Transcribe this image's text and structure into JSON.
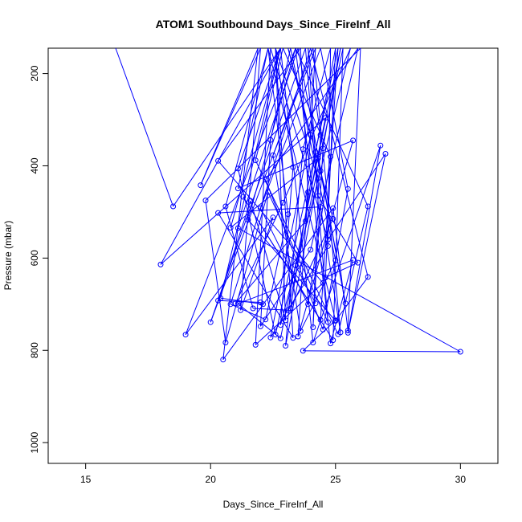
{
  "chart_data": {
    "type": "line",
    "title": "ATOM1 Southbound Days_Since_FireInf_All",
    "xlabel": "Days_Since_FireInf_All",
    "ylabel": "Pressure (mbar)",
    "xlim": [
      13.5,
      31.5
    ],
    "ylim": [
      1045,
      145
    ],
    "y_inverted": true,
    "x_ticks": [
      15,
      20,
      25,
      30
    ],
    "x_tick_labels": [
      "15",
      "20",
      "25",
      "30"
    ],
    "y_ticks": [
      200,
      400,
      600,
      800,
      1000
    ],
    "y_tick_labels": [
      "200",
      "400",
      "600",
      "800",
      "1000"
    ],
    "grid": false,
    "series": [
      {
        "color": "#0000ff",
        "points": [
          [
            16.2,
            145
          ],
          [
            18.5,
            488
          ],
          [
            22.8,
            145
          ],
          [
            18.0,
            614
          ],
          [
            24.6,
            296
          ],
          [
            22.8,
            774
          ],
          [
            21.1,
            699
          ],
          [
            25.7,
            604
          ],
          [
            24.8,
            785
          ],
          [
            23.4,
            145
          ],
          [
            19.0,
            766
          ],
          [
            22.5,
            512
          ],
          [
            21.2,
            713
          ],
          [
            22.0,
            145
          ],
          [
            19.6,
            442
          ],
          [
            21.9,
            145
          ],
          [
            20.5,
            820
          ],
          [
            24.9,
            492
          ],
          [
            25.5,
            757
          ],
          [
            26.0,
            145
          ],
          [
            19.8,
            475
          ],
          [
            20.6,
            783
          ],
          [
            22.3,
            457
          ],
          [
            24.7,
            739
          ],
          [
            23.8,
            145
          ],
          [
            20.0,
            739
          ],
          [
            24.1,
            145
          ],
          [
            25.2,
            761
          ],
          [
            24.4,
            489
          ],
          [
            20.3,
            502
          ],
          [
            23.3,
            773
          ],
          [
            22.6,
            145
          ],
          [
            23.0,
            735
          ],
          [
            21.6,
            476
          ],
          [
            20.3,
            692
          ],
          [
            22.0,
            696
          ],
          [
            22.1,
            700
          ],
          [
            20.4,
            687
          ],
          [
            22.8,
            145
          ],
          [
            21.1,
            406
          ],
          [
            22.6,
            766
          ],
          [
            25.1,
            145
          ],
          [
            24.4,
            734
          ],
          [
            21.3,
            467
          ],
          [
            24.9,
            778
          ],
          [
            25.3,
            145
          ],
          [
            23.1,
            713
          ],
          [
            21.7,
            709
          ],
          [
            20.6,
            488
          ],
          [
            22.3,
            145
          ],
          [
            25.0,
            735
          ],
          [
            23.7,
            801
          ],
          [
            30.0,
            803
          ],
          [
            21.1,
            535
          ],
          [
            23.5,
            145
          ],
          [
            25.4,
            698
          ],
          [
            24.3,
            384
          ],
          [
            20.8,
            534
          ],
          [
            22.8,
            145
          ],
          [
            24.1,
            783
          ],
          [
            26.8,
            356
          ],
          [
            25.5,
            762
          ],
          [
            27.0,
            374
          ],
          [
            24.7,
            560
          ],
          [
            22.4,
            145
          ],
          [
            21.8,
            788
          ],
          [
            24.5,
            654
          ],
          [
            20.3,
            389
          ],
          [
            23.6,
            145
          ],
          [
            23.9,
            457
          ],
          [
            23.5,
            770
          ],
          [
            25.7,
            345
          ],
          [
            21.1,
            449
          ],
          [
            22.3,
            145
          ],
          [
            23.1,
            505
          ],
          [
            22.2,
            733
          ],
          [
            20.8,
            700
          ],
          [
            24.0,
            145
          ],
          [
            26.3,
            641
          ],
          [
            25.0,
            736
          ],
          [
            21.5,
            517
          ],
          [
            23.4,
            145
          ],
          [
            26.3,
            488
          ],
          [
            25.1,
            765
          ],
          [
            21.8,
            388
          ],
          [
            22.9,
            145
          ],
          [
            24.8,
            380
          ],
          [
            23.9,
            700
          ],
          [
            22.0,
            492
          ],
          [
            24.4,
            145
          ],
          [
            25.5,
            450
          ],
          [
            24.5,
            755
          ],
          [
            22.2,
            430
          ],
          [
            25.9,
            145
          ],
          [
            24.0,
            582
          ],
          [
            22.0,
            748
          ],
          [
            22.4,
            344
          ],
          [
            23.2,
            145
          ],
          [
            25.0,
            605
          ],
          [
            23.6,
            758
          ],
          [
            22.5,
            377
          ],
          [
            24.2,
            145
          ],
          [
            23.8,
            520
          ],
          [
            21.0,
            698
          ],
          [
            22.9,
            480
          ],
          [
            25.6,
            145
          ],
          [
            24.4,
            411
          ],
          [
            22.8,
            745
          ],
          [
            23.3,
            403
          ],
          [
            22.6,
            145
          ],
          [
            24.3,
            427
          ],
          [
            23.0,
            790
          ],
          [
            23.7,
            364
          ],
          [
            24.8,
            145
          ],
          [
            24.7,
            574
          ],
          [
            22.4,
            772
          ],
          [
            24.0,
            333
          ],
          [
            23.1,
            145
          ],
          [
            24.9,
            515
          ],
          [
            23.2,
            709
          ],
          [
            24.2,
            370
          ],
          [
            25.0,
            145
          ],
          [
            24.6,
            642
          ],
          [
            25.9,
            610
          ],
          [
            24.3,
            465
          ],
          [
            23.9,
            145
          ],
          [
            24.4,
            333
          ],
          [
            24.1,
            750
          ],
          [
            24.5,
            362
          ],
          [
            25.2,
            145
          ],
          [
            23.4,
            616
          ],
          [
            24.2,
            698
          ]
        ]
      }
    ]
  }
}
